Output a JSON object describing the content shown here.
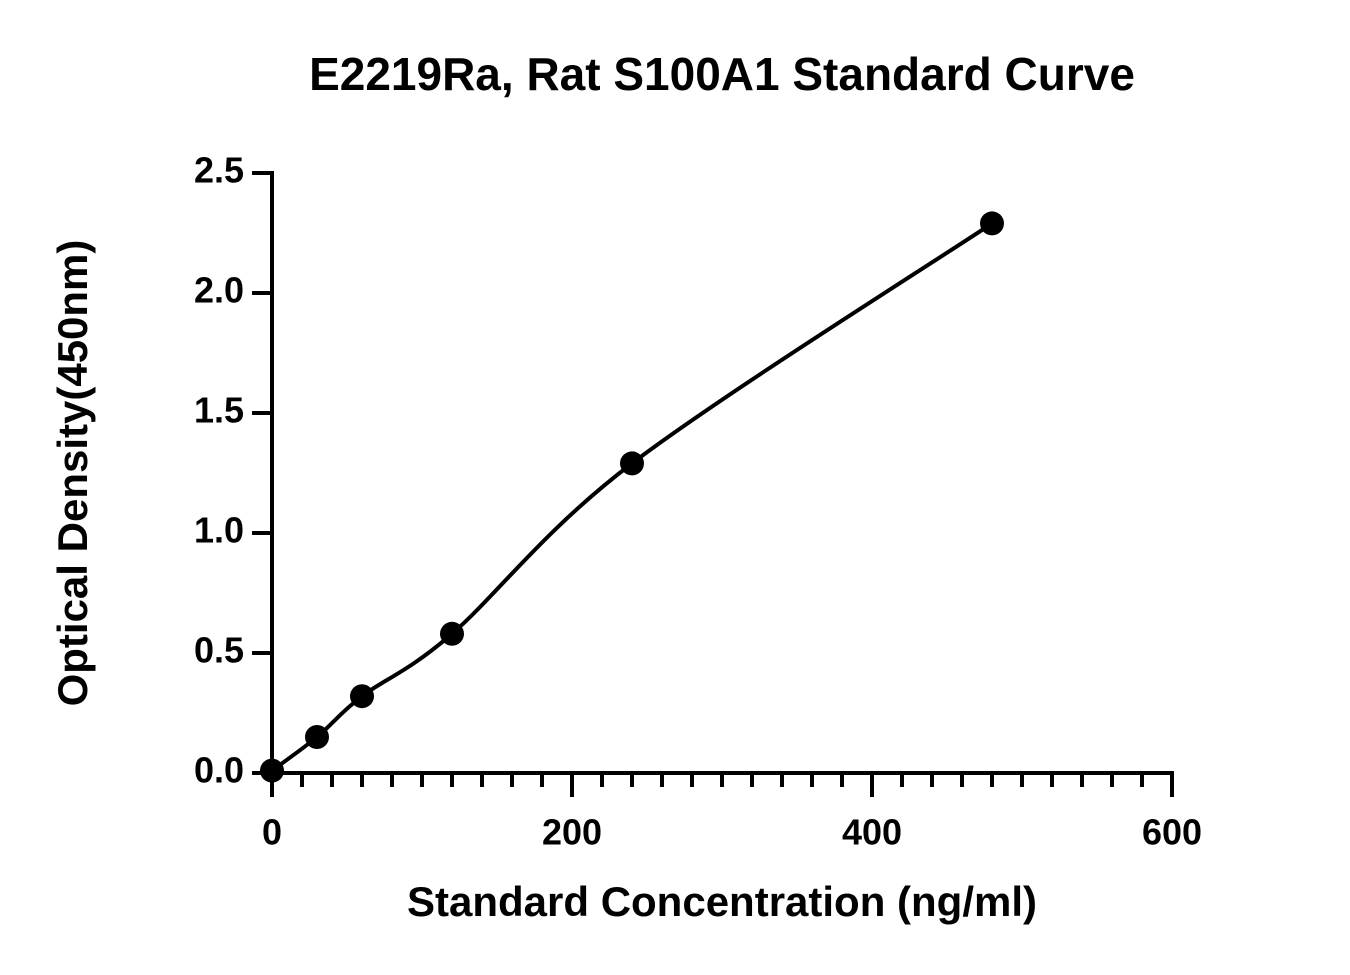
{
  "chart_data": {
    "type": "scatter",
    "title": "E2219Ra, Rat S100A1 Standard Curve",
    "x_label": "Standard Concentration (ng/ml)",
    "y_label": "Optical Density(450nm)",
    "x": [
      0,
      30,
      60,
      120,
      240,
      480
    ],
    "values": [
      0.01,
      0.15,
      0.32,
      0.58,
      1.29,
      2.29
    ],
    "color": "#000000",
    "xlim": [
      0,
      600
    ],
    "xticks": [
      0,
      200,
      400,
      600
    ],
    "ylim": [
      0,
      2.5
    ],
    "yticks": [
      {
        "value": 0,
        "label": "0.0"
      },
      {
        "value": 0.5,
        "label": "0.5"
      },
      {
        "value": 1,
        "label": "1.0"
      },
      {
        "value": 1.5,
        "label": "1.5"
      },
      {
        "value": 2,
        "label": "2.0"
      },
      {
        "value": 2.5,
        "label": "2.5"
      }
    ],
    "grid": false
  }
}
